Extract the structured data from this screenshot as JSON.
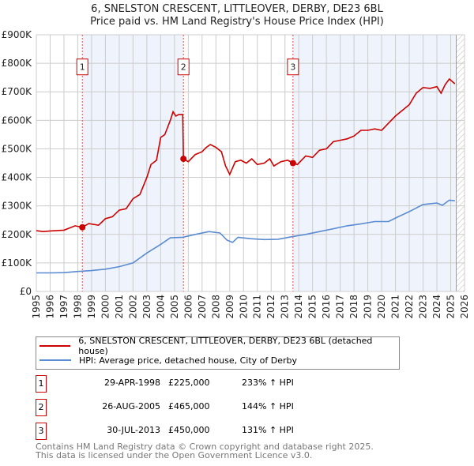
{
  "title": "6, SNELSTON CRESCENT, LITTLEOVER, DERBY, DE23 6BL",
  "subtitle": "Price paid vs. HM Land Registry's House Price Index (HPI)",
  "chart_data": {
    "type": "line",
    "title": "6, SNELSTON CRESCENT, LITTLEOVER, DERBY, DE23 6BL",
    "subtitle": "Price paid vs. HM Land Registry's House Price Index (HPI)",
    "xlim": [
      1995,
      2026
    ],
    "ylim": [
      0,
      900000
    ],
    "x_ticks": [
      "1995",
      "1996",
      "1997",
      "1998",
      "1999",
      "2000",
      "2001",
      "2002",
      "2003",
      "2004",
      "2005",
      "2006",
      "2007",
      "2008",
      "2009",
      "2010",
      "2011",
      "2012",
      "2013",
      "2014",
      "2015",
      "2016",
      "2017",
      "2018",
      "2019",
      "2020",
      "2021",
      "2022",
      "2023",
      "2024",
      "2025",
      "2026"
    ],
    "y_ticks": [
      {
        "v": 0,
        "label": "£0"
      },
      {
        "v": 100000,
        "label": "£100K"
      },
      {
        "v": 200000,
        "label": "£200K"
      },
      {
        "v": 300000,
        "label": "£300K"
      },
      {
        "v": 400000,
        "label": "£400K"
      },
      {
        "v": 500000,
        "label": "£500K"
      },
      {
        "v": 600000,
        "label": "£600K"
      },
      {
        "v": 700000,
        "label": "£700K"
      },
      {
        "v": 800000,
        "label": "£800K"
      },
      {
        "v": 900000,
        "label": "£900K"
      }
    ],
    "grid": true,
    "series": [
      {
        "name": "6, SNELSTON CRESCENT, LITTLEOVER, DERBY, DE23 6BL (detached house)",
        "color": "#cc0000",
        "x": [
          1995,
          1995.5,
          1996,
          1997,
          1997.8,
          1998.33,
          1998.8,
          1999.5,
          2000,
          2000.5,
          2001,
          2001.5,
          2002,
          2002.5,
          2003,
          2003.3,
          2003.7,
          2004,
          2004.3,
          2004.7,
          2004.9,
          2005.1,
          2005.3,
          2005.6,
          2005.65,
          2006,
          2006.5,
          2007,
          2007.3,
          2007.6,
          2008,
          2008.4,
          2008.7,
          2009,
          2009.4,
          2009.8,
          2010.2,
          2010.6,
          2011,
          2011.5,
          2011.9,
          2012.2,
          2012.7,
          2013.2,
          2013.58,
          2013.9,
          2014.5,
          2015,
          2015.5,
          2016,
          2016.5,
          2017,
          2017.5,
          2018,
          2018.5,
          2019,
          2019.5,
          2020,
          2020.5,
          2021,
          2021.5,
          2022,
          2022.5,
          2023,
          2023.5,
          2024,
          2024.3,
          2024.6,
          2024.9,
          2025.3
        ],
        "y": [
          213,
          210,
          212,
          215,
          230,
          225,
          238,
          232,
          255,
          262,
          285,
          290,
          325,
          340,
          400,
          445,
          460,
          540,
          550,
          600,
          630,
          615,
          620,
          620,
          465,
          455,
          480,
          490,
          505,
          515,
          505,
          490,
          440,
          410,
          455,
          460,
          450,
          465,
          445,
          450,
          465,
          440,
          455,
          460,
          450,
          445,
          475,
          470,
          495,
          500,
          525,
          530,
          535,
          545,
          565,
          565,
          570,
          565,
          590,
          615,
          635,
          655,
          695,
          715,
          712,
          718,
          695,
          725,
          745,
          728
        ]
      },
      {
        "name": "HPI: Average price, detached house, City of Derby",
        "color": "#5b8bd0",
        "x": [
          1995,
          1996,
          1997,
          1998,
          1999,
          2000,
          2001,
          2002,
          2003,
          2004,
          2004.7,
          2005.6,
          2006.5,
          2007.5,
          2008.3,
          2008.8,
          2009.2,
          2009.6,
          2010.5,
          2011.5,
          2012.5,
          2013.5,
          2014.5,
          2015.5,
          2016.5,
          2017.5,
          2018.5,
          2019.5,
          2020.5,
          2021.2,
          2022,
          2023,
          2024,
          2024.4,
          2024.9,
          2025.3
        ],
        "y": [
          65,
          65,
          66,
          70,
          73,
          78,
          87,
          100,
          135,
          165,
          188,
          190,
          200,
          210,
          205,
          180,
          172,
          190,
          185,
          182,
          183,
          192,
          200,
          210,
          220,
          230,
          237,
          245,
          245,
          262,
          280,
          305,
          310,
          302,
          320,
          318
        ]
      }
    ],
    "y_units": "thousands GBP",
    "sales": [
      {
        "label": "1",
        "x": 1998.33,
        "price": 225000,
        "date": "29-APR-1998",
        "price_text": "£225,000",
        "hpi": "233% ↑ HPI"
      },
      {
        "label": "2",
        "x": 2005.65,
        "price": 465000,
        "date": "26-AUG-2005",
        "price_text": "£465,000",
        "hpi": "144% ↑ HPI"
      },
      {
        "label": "3",
        "x": 2013.58,
        "price": 450000,
        "date": "30-JUL-2013",
        "price_text": "£450,000",
        "hpi": "131% ↑ HPI"
      }
    ],
    "shaded_ranges": [
      [
        1998.33,
        2005.65
      ],
      [
        2013.58,
        2025.4
      ]
    ],
    "forecast_from": 2025.4,
    "legend_placement": "below"
  },
  "footer": [
    "Contains HM Land Registry data © Crown copyright and database right 2025.",
    "This data is licensed under the Open Government Licence v3.0."
  ]
}
